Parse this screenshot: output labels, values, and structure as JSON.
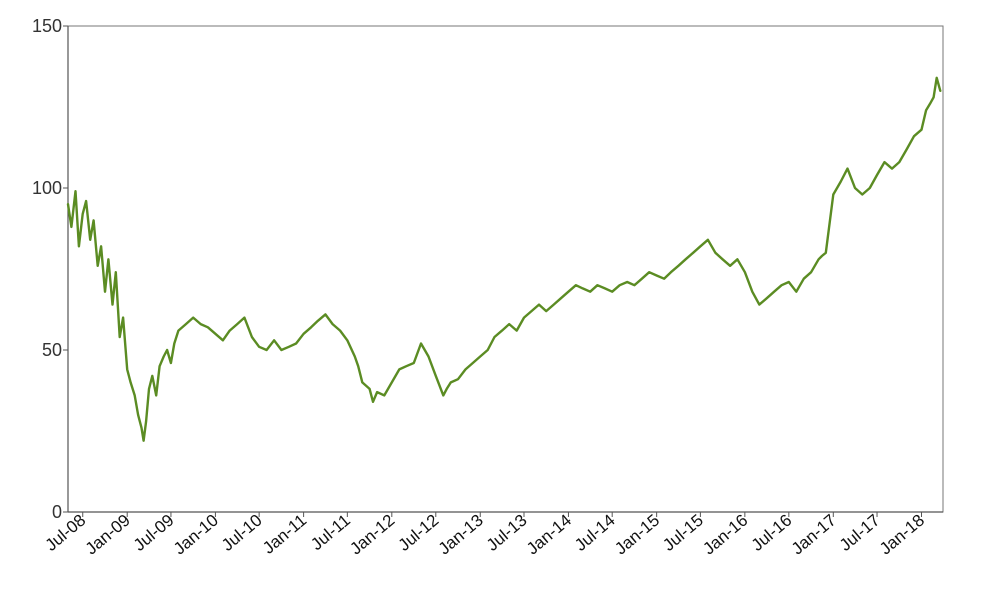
{
  "chart_data": {
    "type": "line",
    "title": "",
    "xlabel": "",
    "ylabel": "",
    "grid": false,
    "legend": "none",
    "ylim": [
      0,
      150
    ],
    "xlim": [
      "2008-05-01",
      "2018-03-31"
    ],
    "y_ticks": [
      "0",
      "50",
      "100",
      "150"
    ],
    "x_ticks": [
      {
        "label": "Jul-08",
        "date": "2008-07-01"
      },
      {
        "label": "Jan-09",
        "date": "2009-01-01"
      },
      {
        "label": "Jul-09",
        "date": "2009-07-01"
      },
      {
        "label": "Jan-10",
        "date": "2010-01-01"
      },
      {
        "label": "Jul-10",
        "date": "2010-07-01"
      },
      {
        "label": "Jan-11",
        "date": "2011-01-01"
      },
      {
        "label": "Jul-11",
        "date": "2011-07-01"
      },
      {
        "label": "Jan-12",
        "date": "2012-01-01"
      },
      {
        "label": "Jul-12",
        "date": "2012-07-01"
      },
      {
        "label": "Jan-13",
        "date": "2013-01-01"
      },
      {
        "label": "Jul-13",
        "date": "2013-07-01"
      },
      {
        "label": "Jan-14",
        "date": "2014-01-01"
      },
      {
        "label": "Jul-14",
        "date": "2014-07-01"
      },
      {
        "label": "Jan-15",
        "date": "2015-01-01"
      },
      {
        "label": "Jul-15",
        "date": "2015-07-01"
      },
      {
        "label": "Jan-16",
        "date": "2016-01-01"
      },
      {
        "label": "Jul-16",
        "date": "2016-07-01"
      },
      {
        "label": "Jan-17",
        "date": "2017-01-01"
      },
      {
        "label": "Jul-17",
        "date": "2017-07-01"
      },
      {
        "label": "Jan-18",
        "date": "2018-01-01"
      }
    ],
    "colors": {
      "line": "#5b8c23",
      "axis": "#555555",
      "frame": "#777777"
    },
    "series": [
      {
        "x": [
          "2008-05-01",
          "2008-05-15",
          "2008-06-01",
          "2008-06-15",
          "2008-07-01",
          "2008-07-15",
          "2008-08-01",
          "2008-08-15",
          "2008-09-01",
          "2008-09-15",
          "2008-10-01",
          "2008-10-15",
          "2008-11-01",
          "2008-11-15",
          "2008-12-01",
          "2008-12-15",
          "2009-01-01",
          "2009-01-15",
          "2009-02-01",
          "2009-02-15",
          "2009-03-01",
          "2009-03-10",
          "2009-03-20",
          "2009-04-01",
          "2009-04-15",
          "2009-05-01",
          "2009-05-15",
          "2009-06-01",
          "2009-06-15",
          "2009-07-01",
          "2009-07-15",
          "2009-08-01",
          "2009-09-01",
          "2009-10-01",
          "2009-11-01",
          "2009-12-01",
          "2010-01-01",
          "2010-02-01",
          "2010-03-01",
          "2010-04-01",
          "2010-05-01",
          "2010-06-01",
          "2010-07-01",
          "2010-08-01",
          "2010-09-01",
          "2010-10-01",
          "2010-11-01",
          "2010-12-01",
          "2011-01-01",
          "2011-02-01",
          "2011-03-01",
          "2011-04-01",
          "2011-05-01",
          "2011-06-01",
          "2011-07-01",
          "2011-08-01",
          "2011-08-15",
          "2011-09-01",
          "2011-10-01",
          "2011-10-15",
          "2011-11-01",
          "2011-12-01",
          "2012-01-01",
          "2012-02-01",
          "2012-03-01",
          "2012-04-01",
          "2012-05-01",
          "2012-06-01",
          "2012-07-01",
          "2012-08-01",
          "2012-08-15",
          "2012-09-01",
          "2012-10-01",
          "2012-11-01",
          "2012-12-01",
          "2013-01-01",
          "2013-02-01",
          "2013-03-01",
          "2013-04-01",
          "2013-05-01",
          "2013-06-01",
          "2013-07-01",
          "2013-08-01",
          "2013-09-01",
          "2013-10-01",
          "2013-11-01",
          "2013-12-01",
          "2014-01-01",
          "2014-02-01",
          "2014-03-01",
          "2014-04-01",
          "2014-05-01",
          "2014-06-01",
          "2014-07-01",
          "2014-08-01",
          "2014-09-01",
          "2014-10-01",
          "2014-11-01",
          "2014-12-01",
          "2015-01-01",
          "2015-02-01",
          "2015-03-01",
          "2015-04-01",
          "2015-05-01",
          "2015-06-01",
          "2015-07-01",
          "2015-08-01",
          "2015-09-01",
          "2015-10-01",
          "2015-11-01",
          "2015-12-01",
          "2016-01-01",
          "2016-02-01",
          "2016-03-01",
          "2016-04-01",
          "2016-05-01",
          "2016-06-01",
          "2016-07-01",
          "2016-08-01",
          "2016-09-01",
          "2016-10-01",
          "2016-11-01",
          "2016-11-15",
          "2016-12-01",
          "2017-01-01",
          "2017-02-01",
          "2017-03-01",
          "2017-04-01",
          "2017-05-01",
          "2017-06-01",
          "2017-07-01",
          "2017-08-01",
          "2017-09-01",
          "2017-10-01",
          "2017-11-01",
          "2017-12-01",
          "2018-01-01",
          "2018-01-20",
          "2018-02-05",
          "2018-02-20",
          "2018-03-05",
          "2018-03-20"
        ],
        "values": [
          95,
          88,
          99,
          82,
          92,
          96,
          84,
          90,
          76,
          82,
          68,
          78,
          64,
          74,
          54,
          60,
          44,
          40,
          36,
          30,
          26,
          22,
          28,
          38,
          42,
          36,
          45,
          48,
          50,
          46,
          52,
          56,
          58,
          60,
          58,
          57,
          55,
          53,
          56,
          58,
          60,
          54,
          51,
          50,
          53,
          50,
          51,
          52,
          55,
          57,
          59,
          61,
          58,
          56,
          53,
          48,
          45,
          40,
          38,
          34,
          37,
          36,
          40,
          44,
          45,
          46,
          52,
          48,
          42,
          36,
          38,
          40,
          41,
          44,
          46,
          48,
          50,
          54,
          56,
          58,
          56,
          60,
          62,
          64,
          62,
          64,
          66,
          68,
          70,
          69,
          68,
          70,
          69,
          68,
          70,
          71,
          70,
          72,
          74,
          73,
          72,
          74,
          76,
          78,
          80,
          82,
          84,
          80,
          78,
          76,
          78,
          74,
          68,
          64,
          66,
          68,
          70,
          71,
          68,
          72,
          74,
          78,
          79,
          80,
          98,
          102,
          106,
          100,
          98,
          100,
          104,
          108,
          106,
          108,
          112,
          116,
          118,
          124,
          126,
          128,
          134,
          130
        ]
      }
    ]
  }
}
